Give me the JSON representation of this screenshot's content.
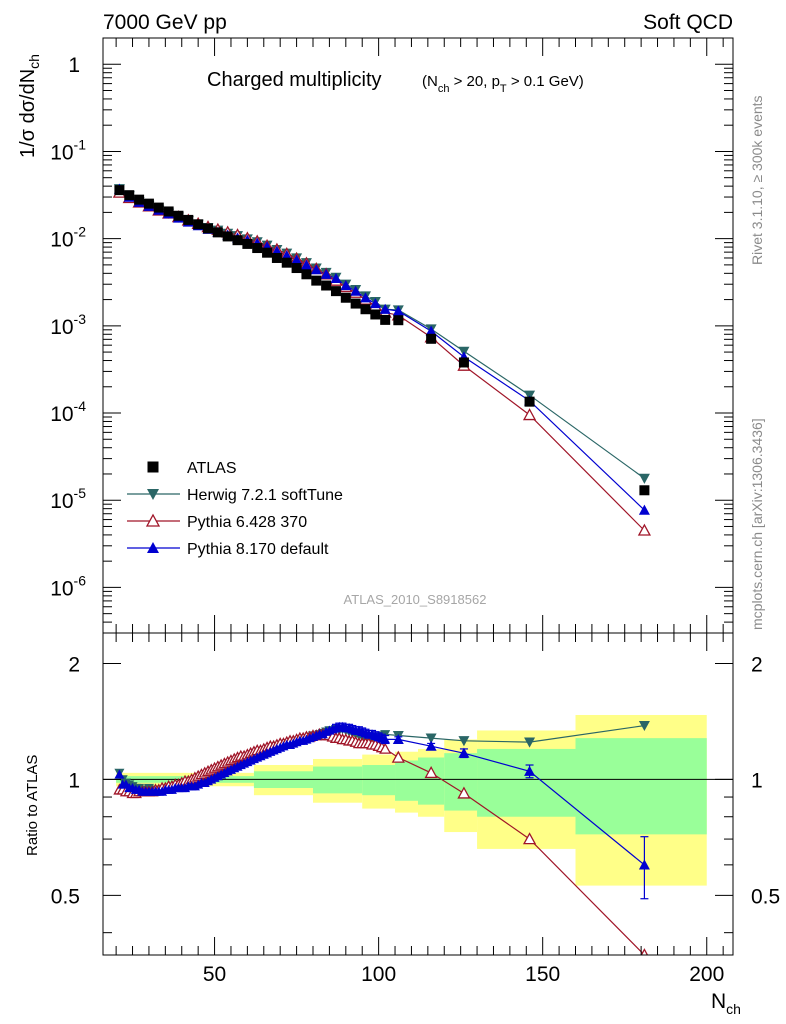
{
  "header": {
    "energy": "7000 GeV pp",
    "category": "Soft QCD"
  },
  "side": {
    "rivet": "Rivet 3.1.10, ≥ 300k events",
    "source": "mcplots.cern.ch [arXiv:1306.3436]"
  },
  "plot": {
    "title_main": "Charged multiplicity",
    "title_cut": "(N_ch > 20, p_T > 0.1 GeV)",
    "ylabel": "1/σ dσ/dN_ch",
    "xlabel": "N_ch",
    "ratio_ylabel": "Ratio to ATLAS",
    "analysis_tag": "ATLAS_2010_S8918562"
  },
  "colors": {
    "atlas": "#000000",
    "herwig": "#2a6666",
    "pythia6": "#a01528",
    "pythia8": "#0000d0",
    "band_inner": "#99ff99",
    "band_outer": "#ffff88"
  },
  "chart_data": {
    "type": "scatter",
    "title": "Charged multiplicity (N_ch > 20, p_T > 0.1 GeV)",
    "xlabel": "N_ch",
    "ylabel": "1/σ dσ/dN_ch",
    "xlim": [
      16,
      208
    ],
    "ylim": [
      3e-07,
      2
    ],
    "yscale": "log",
    "xticks": [
      50,
      100,
      150,
      200
    ],
    "yticks": [
      {
        "v": 1e-06,
        "base": "10",
        "exp": "-6"
      },
      {
        "v": 1e-05,
        "base": "10",
        "exp": "-5"
      },
      {
        "v": 0.0001,
        "base": "10",
        "exp": "-4"
      },
      {
        "v": 0.001,
        "base": "10",
        "exp": "-3"
      },
      {
        "v": 0.01,
        "base": "10",
        "exp": "-2"
      },
      {
        "v": 0.1,
        "base": "10",
        "exp": "-1"
      },
      {
        "v": 1,
        "base": "1",
        "exp": ""
      }
    ],
    "legend_position": "bottom-left",
    "series": [
      {
        "key": "atlas",
        "name": "ATLAS",
        "marker": "square",
        "x": [
          21,
          24,
          27,
          30,
          33,
          36,
          39,
          42,
          45,
          48,
          51,
          54,
          57,
          60,
          63,
          66,
          69,
          72,
          75,
          78,
          81,
          84,
          87,
          90,
          93,
          96,
          99,
          102,
          106,
          116,
          126,
          146,
          181
        ],
        "y": [
          0.036,
          0.0315,
          0.028,
          0.0252,
          0.0227,
          0.0205,
          0.0183,
          0.0164,
          0.0146,
          0.0131,
          0.0118,
          0.0106,
          0.0096,
          0.0087,
          0.0078,
          0.0069,
          0.006,
          0.0053,
          0.0046,
          0.0039,
          0.0033,
          0.0029,
          0.0025,
          0.0021,
          0.0018,
          0.00155,
          0.00135,
          0.00117,
          0.00116,
          0.00071,
          0.00038,
          0.000135,
          1.3e-05
        ]
      },
      {
        "key": "herwig",
        "name": "Herwig 7.2.1 softTune",
        "marker": "triangle-down",
        "x": [
          21,
          24,
          27,
          30,
          33,
          36,
          39,
          42,
          45,
          48,
          51,
          54,
          57,
          60,
          63,
          66,
          69,
          72,
          75,
          78,
          81,
          84,
          87,
          90,
          93,
          96,
          99,
          102,
          106,
          116,
          126,
          146,
          181
        ],
        "y": [
          0.0374,
          0.031,
          0.0266,
          0.024,
          0.0212,
          0.0195,
          0.0176,
          0.0161,
          0.0146,
          0.0134,
          0.0125,
          0.0115,
          0.0108,
          0.0099,
          0.0092,
          0.0084,
          0.0075,
          0.0068,
          0.006,
          0.0053,
          0.0046,
          0.0041,
          0.0036,
          0.003,
          0.0026,
          0.0022,
          0.0019,
          0.00155,
          0.00152,
          0.00092,
          0.00051,
          0.00016,
          1.78e-05
        ]
      },
      {
        "key": "pythia6",
        "name": "Pythia 6.428 370",
        "marker": "triangle-open",
        "x": [
          21,
          24,
          27,
          30,
          33,
          36,
          39,
          42,
          45,
          48,
          51,
          54,
          57,
          60,
          63,
          66,
          69,
          72,
          75,
          78,
          81,
          84,
          87,
          90,
          93,
          96,
          99,
          102,
          106,
          116,
          126,
          146,
          181
        ],
        "y": [
          0.0338,
          0.0293,
          0.026,
          0.0235,
          0.0211,
          0.0195,
          0.0177,
          0.0162,
          0.0148,
          0.0136,
          0.0127,
          0.0118,
          0.011,
          0.0101,
          0.0093,
          0.0083,
          0.0075,
          0.0067,
          0.0059,
          0.0052,
          0.0045,
          0.0039,
          0.0033,
          0.0028,
          0.0024,
          0.002,
          0.0017,
          0.00142,
          0.00132,
          0.00074,
          0.00035,
          9.5e-05,
          4.5e-06
        ]
      },
      {
        "key": "pythia8",
        "name": "Pythia 8.170 default",
        "marker": "triangle-up",
        "x": [
          21,
          24,
          27,
          30,
          33,
          36,
          39,
          42,
          45,
          48,
          51,
          54,
          57,
          60,
          63,
          66,
          69,
          72,
          75,
          78,
          81,
          84,
          87,
          90,
          93,
          96,
          99,
          102,
          106,
          116,
          126,
          146,
          181
        ],
        "y": [
          0.0371,
          0.0299,
          0.0261,
          0.0235,
          0.0212,
          0.0193,
          0.0172,
          0.0155,
          0.0141,
          0.0128,
          0.0118,
          0.011,
          0.0102,
          0.0096,
          0.0089,
          0.0081,
          0.0072,
          0.0064,
          0.0057,
          0.005,
          0.0044,
          0.0039,
          0.0035,
          0.0029,
          0.0025,
          0.0021,
          0.0018,
          0.00155,
          0.00148,
          0.00087,
          0.00044,
          0.000138,
          7.7e-06
        ]
      }
    ],
    "ratio": {
      "ylim": [
        0.35,
        2.4
      ],
      "yscale": "log",
      "yticks": [
        0.5,
        1,
        2
      ],
      "ylabel": "Ratio to ATLAS",
      "bands": [
        {
          "x0": 20,
          "x1": 62,
          "inner": 0.02,
          "outer": 0.04
        },
        {
          "x0": 62,
          "x1": 80,
          "inner": 0.05,
          "outer": 0.09
        },
        {
          "x0": 80,
          "x1": 95,
          "inner": 0.08,
          "outer": 0.13
        },
        {
          "x0": 95,
          "x1": 105,
          "inner": 0.09,
          "outer": 0.16
        },
        {
          "x0": 105,
          "x1": 112,
          "inner": 0.12,
          "outer": 0.18
        },
        {
          "x0": 112,
          "x1": 120,
          "inner": 0.14,
          "outer": 0.2
        },
        {
          "x0": 120,
          "x1": 130,
          "inner": 0.17,
          "outer": 0.27
        },
        {
          "x0": 130,
          "x1": 160,
          "inner": 0.2,
          "outer": 0.34
        },
        {
          "x0": 160,
          "x1": 200,
          "inner": 0.28,
          "outer": 0.47
        }
      ],
      "series": [
        {
          "key": "herwig",
          "x": [
            21,
            22,
            23,
            24,
            25,
            26,
            27,
            28,
            29,
            30,
            31,
            32,
            33,
            34,
            35,
            36,
            37,
            38,
            39,
            40,
            41,
            42,
            43,
            44,
            45,
            46,
            47,
            48,
            49,
            50,
            51,
            52,
            53,
            54,
            55,
            56,
            57,
            58,
            59,
            60,
            61,
            62,
            63,
            64,
            65,
            66,
            67,
            68,
            69,
            70,
            71,
            72,
            73,
            74,
            75,
            76,
            77,
            78,
            79,
            80,
            81,
            82,
            83,
            84,
            85,
            86,
            87,
            88,
            89,
            90,
            91,
            92,
            93,
            94,
            95,
            96,
            97,
            98,
            99,
            100,
            101,
            102,
            106,
            116,
            126,
            146,
            181
          ],
          "y": [
            1.04,
            1.0,
            0.98,
            0.97,
            0.96,
            0.95,
            0.95,
            0.94,
            0.94,
            0.95,
            0.94,
            0.94,
            0.93,
            0.94,
            0.94,
            0.95,
            0.95,
            0.95,
            0.96,
            0.96,
            0.97,
            0.98,
            0.99,
            0.99,
            1.0,
            1.01,
            1.02,
            1.02,
            1.03,
            1.04,
            1.05,
            1.06,
            1.07,
            1.08,
            1.09,
            1.1,
            1.11,
            1.12,
            1.13,
            1.14,
            1.14,
            1.15,
            1.16,
            1.17,
            1.18,
            1.19,
            1.2,
            1.21,
            1.22,
            1.23,
            1.23,
            1.24,
            1.24,
            1.25,
            1.26,
            1.26,
            1.27,
            1.28,
            1.29,
            1.3,
            1.3,
            1.31,
            1.32,
            1.33,
            1.34,
            1.34,
            1.35,
            1.34,
            1.35,
            1.34,
            1.33,
            1.32,
            1.31,
            1.3,
            1.29,
            1.28,
            1.27,
            1.27,
            1.28,
            1.29,
            1.3,
            1.31,
            1.3,
            1.28,
            1.26,
            1.25,
            1.38
          ]
        },
        {
          "key": "pythia6",
          "x": [
            21,
            22,
            23,
            24,
            25,
            26,
            27,
            28,
            29,
            30,
            31,
            32,
            33,
            34,
            35,
            36,
            37,
            38,
            39,
            40,
            41,
            42,
            43,
            44,
            45,
            46,
            47,
            48,
            49,
            50,
            51,
            52,
            53,
            54,
            55,
            56,
            57,
            58,
            59,
            60,
            61,
            62,
            63,
            64,
            65,
            66,
            67,
            68,
            69,
            70,
            71,
            72,
            73,
            74,
            75,
            76,
            77,
            78,
            79,
            80,
            81,
            82,
            83,
            84,
            85,
            86,
            87,
            88,
            89,
            90,
            91,
            92,
            93,
            94,
            95,
            96,
            97,
            98,
            99,
            100,
            101,
            102,
            106,
            116,
            126,
            146,
            181
          ],
          "y": [
            0.94,
            0.94,
            0.93,
            0.93,
            0.92,
            0.92,
            0.93,
            0.93,
            0.93,
            0.93,
            0.93,
            0.94,
            0.94,
            0.95,
            0.95,
            0.96,
            0.96,
            0.97,
            0.97,
            0.98,
            0.99,
            0.99,
            1.0,
            1.01,
            1.02,
            1.03,
            1.04,
            1.05,
            1.06,
            1.07,
            1.08,
            1.09,
            1.1,
            1.11,
            1.12,
            1.13,
            1.14,
            1.15,
            1.15,
            1.16,
            1.17,
            1.18,
            1.19,
            1.19,
            1.2,
            1.21,
            1.22,
            1.22,
            1.23,
            1.24,
            1.24,
            1.25,
            1.26,
            1.26,
            1.27,
            1.28,
            1.28,
            1.29,
            1.29,
            1.3,
            1.3,
            1.31,
            1.31,
            1.3,
            1.3,
            1.29,
            1.28,
            1.28,
            1.27,
            1.27,
            1.26,
            1.26,
            1.25,
            1.24,
            1.24,
            1.24,
            1.24,
            1.23,
            1.23,
            1.22,
            1.21,
            1.2,
            1.14,
            1.04,
            0.92,
            0.7,
            0.35
          ]
        },
        {
          "key": "pythia8",
          "x": [
            21,
            22,
            23,
            24,
            25,
            26,
            27,
            28,
            29,
            30,
            31,
            32,
            33,
            34,
            35,
            36,
            37,
            38,
            39,
            40,
            41,
            42,
            43,
            44,
            45,
            46,
            47,
            48,
            49,
            50,
            51,
            52,
            53,
            54,
            55,
            56,
            57,
            58,
            59,
            60,
            61,
            62,
            63,
            64,
            65,
            66,
            67,
            68,
            69,
            70,
            71,
            72,
            73,
            74,
            75,
            76,
            77,
            78,
            79,
            80,
            81,
            82,
            83,
            84,
            85,
            86,
            87,
            88,
            89,
            90,
            91,
            92,
            93,
            94,
            95,
            96,
            97,
            98,
            99,
            100,
            101,
            102,
            106,
            116,
            126,
            146,
            181
          ],
          "y": [
            1.03,
            0.97,
            0.97,
            0.95,
            0.95,
            0.94,
            0.94,
            0.93,
            0.93,
            0.93,
            0.93,
            0.93,
            0.93,
            0.93,
            0.94,
            0.94,
            0.94,
            0.95,
            0.95,
            0.95,
            0.95,
            0.96,
            0.96,
            0.96,
            0.97,
            0.98,
            0.98,
            0.99,
            1.0,
            1.01,
            1.02,
            1.03,
            1.04,
            1.05,
            1.06,
            1.07,
            1.08,
            1.09,
            1.1,
            1.11,
            1.12,
            1.13,
            1.14,
            1.15,
            1.16,
            1.17,
            1.18,
            1.19,
            1.2,
            1.21,
            1.22,
            1.23,
            1.23,
            1.24,
            1.25,
            1.26,
            1.26,
            1.27,
            1.28,
            1.29,
            1.3,
            1.31,
            1.31,
            1.33,
            1.34,
            1.35,
            1.36,
            1.37,
            1.37,
            1.36,
            1.36,
            1.35,
            1.34,
            1.34,
            1.33,
            1.32,
            1.31,
            1.31,
            1.3,
            1.29,
            1.28,
            1.27,
            1.27,
            1.22,
            1.17,
            1.05,
            0.6
          ],
          "err": [
            0,
            0,
            0,
            0,
            0,
            0,
            0,
            0,
            0,
            0,
            0,
            0,
            0,
            0,
            0,
            0,
            0,
            0,
            0,
            0,
            0,
            0,
            0,
            0,
            0,
            0,
            0,
            0,
            0,
            0,
            0,
            0,
            0,
            0,
            0,
            0,
            0,
            0,
            0,
            0,
            0,
            0,
            0,
            0,
            0,
            0,
            0,
            0,
            0,
            0,
            0,
            0,
            0,
            0,
            0,
            0,
            0,
            0,
            0,
            0,
            0,
            0,
            0,
            0,
            0,
            0,
            0.03,
            0.03,
            0.03,
            0.03,
            0.03,
            0.03,
            0.03,
            0.03,
            0.03,
            0.03,
            0.03,
            0.03,
            0.03,
            0.03,
            0.03,
            0.03,
            0.02,
            0.02,
            0.03,
            0.04,
            0.11
          ]
        }
      ]
    }
  }
}
